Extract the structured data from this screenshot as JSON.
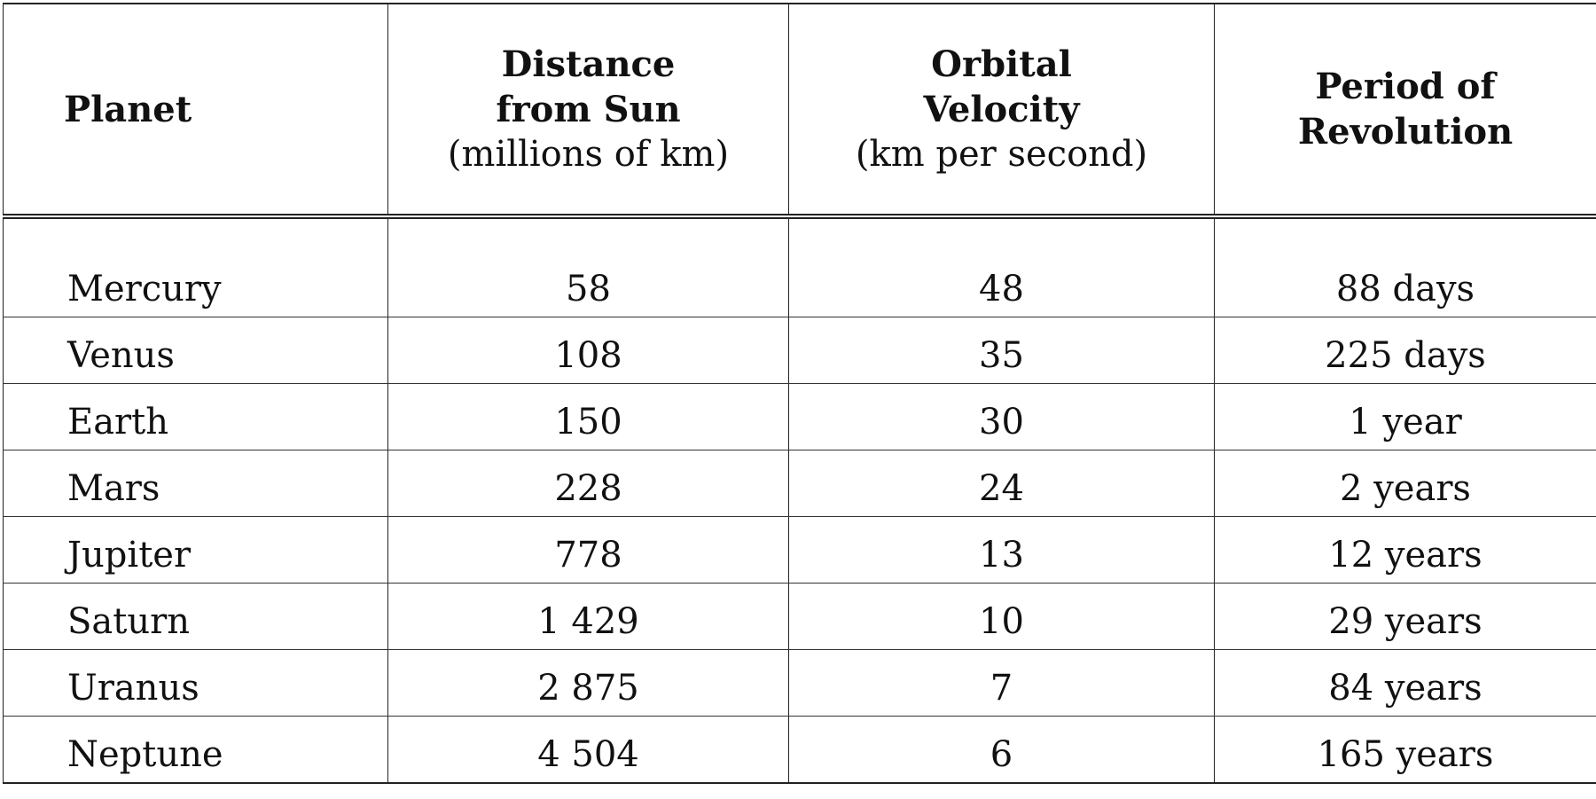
{
  "table": {
    "headers": {
      "planet": "Planet",
      "distance": {
        "line1": "Distance",
        "line2": "from Sun",
        "unit": "(millions of km)"
      },
      "velocity": {
        "line1": "Orbital",
        "line2": "Velocity",
        "unit": "(km per second)"
      },
      "period": {
        "line1": "Period of",
        "line2": "Revolution"
      }
    },
    "rows": [
      {
        "planet": "Mercury",
        "distance": "58",
        "velocity": "48",
        "period": "88 days"
      },
      {
        "planet": "Venus",
        "distance": "108",
        "velocity": "35",
        "period": "225 days"
      },
      {
        "planet": "Earth",
        "distance": "150",
        "velocity": "30",
        "period": "1 year"
      },
      {
        "planet": "Mars",
        "distance": "228",
        "velocity": "24",
        "period": "2 years"
      },
      {
        "planet": "Jupiter",
        "distance": "778",
        "velocity": "13",
        "period": "12 years"
      },
      {
        "planet": "Saturn",
        "distance": "1 429",
        "velocity": "10",
        "period": "29 years"
      },
      {
        "planet": "Uranus",
        "distance": "2 875",
        "velocity": "7",
        "period": "84 years"
      },
      {
        "planet": "Neptune",
        "distance": "4 504",
        "velocity": "6",
        "period": "165 years"
      }
    ]
  }
}
